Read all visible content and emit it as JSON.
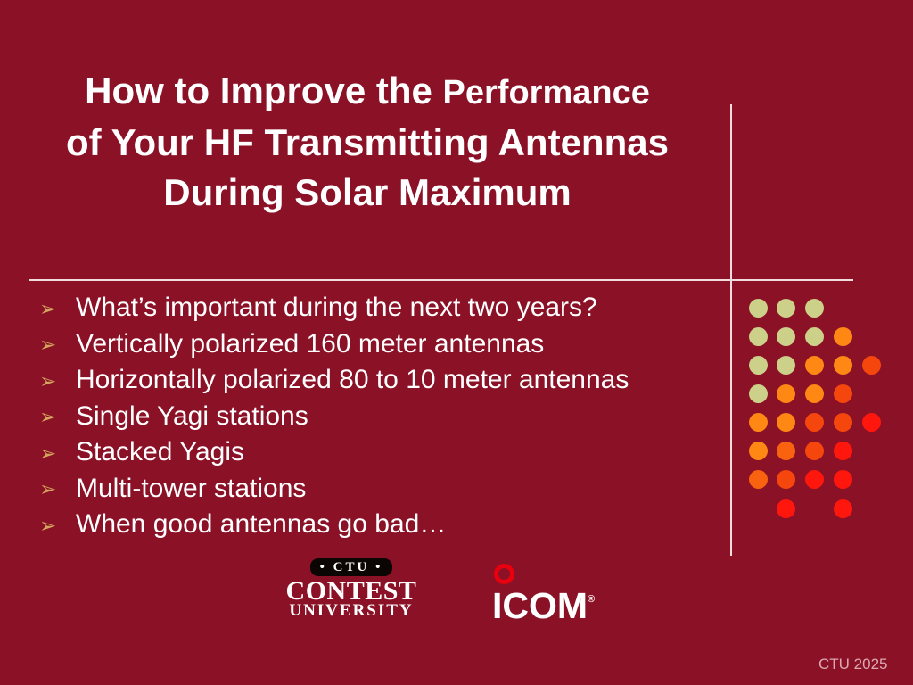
{
  "slide": {
    "title": {
      "line1_main": "How to Improve the ",
      "line1_small": "Performance",
      "line2": "of Your HF Transmitting Antennas",
      "line3": "During Solar Maximum"
    },
    "bullet_icon": "➢",
    "bullets": [
      {
        "text": "What’s important during the next two years?"
      },
      {
        "text": "Vertically polarized 160 meter antennas"
      },
      {
        "text": "Horizontally polarized 80 to 10 meter antennas"
      },
      {
        "text": "Single Yagi stations"
      },
      {
        "text": "Stacked Yagis"
      },
      {
        "text": "Multi-tower stations"
      },
      {
        "text": "When good antennas go bad…"
      }
    ],
    "footer": "CTU 2025"
  },
  "logos": {
    "ctu": {
      "badge": "• CTU •",
      "line1": "CONTEST",
      "line2": "UNIVERSITY"
    },
    "icom": {
      "text": "ICOM",
      "registered": "®"
    }
  },
  "decor": {
    "colors": {
      "background": "#8B1126",
      "divider_line": "#F0DCDC",
      "bullet_arrow": "#D3A55F",
      "icom_ring_red": "#E8000F",
      "ctu_badge_black": "#0B0504",
      "footer_text": "#DCA9B3"
    },
    "dots": {
      "palette": {
        "Y": "#CCD089",
        "O": "#FF8714",
        "D": "#F96310",
        "R": "#F5470D",
        "F": "#FF170D"
      },
      "grid": [
        [
          "Y",
          "Y",
          "Y",
          null,
          null
        ],
        [
          "Y",
          "Y",
          "Y",
          "O",
          null
        ],
        [
          "Y",
          "Y",
          "O",
          "O",
          "R"
        ],
        [
          "Y",
          "O",
          "O",
          "R",
          null
        ],
        [
          "O",
          "O",
          "R",
          "R",
          "F"
        ],
        [
          "O",
          "D",
          "R",
          "F",
          null
        ],
        [
          "D",
          "R",
          "F",
          "F",
          null
        ],
        [
          null,
          "F",
          null,
          "F",
          null
        ]
      ]
    }
  }
}
